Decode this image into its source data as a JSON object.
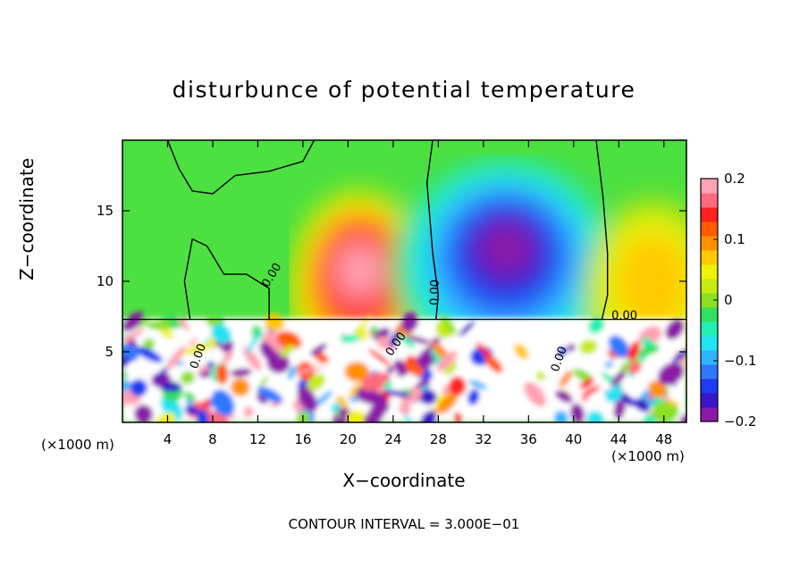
{
  "chart_data": {
    "type": "heatmap",
    "title": "disturbunce of potential temperature",
    "xlabel": "X−coordinate",
    "ylabel": "Z−coordinate",
    "x_unit": "(×1000 m)",
    "footer": "CONTOUR INTERVAL = 3.000E−01",
    "xlim": [
      0,
      50
    ],
    "ylim": [
      0,
      20
    ],
    "x_ticks": [
      4,
      8,
      12,
      16,
      20,
      24,
      28,
      32,
      36,
      40,
      44,
      48
    ],
    "y_ticks": [
      5,
      10,
      15
    ],
    "colorbar": {
      "range": [
        -0.2,
        0.2
      ],
      "tick_values": [
        0.2,
        0.1,
        0,
        -0.1,
        -0.2
      ],
      "tick_labels": [
        "0.2",
        "0.1",
        "0",
        "−0.1",
        "−0.2"
      ],
      "colors": [
        "#8c1aa8",
        "#3a16c8",
        "#1f3cf0",
        "#2f78ff",
        "#2fb4ff",
        "#22e3f2",
        "#22f0b4",
        "#30e060",
        "#8ce020",
        "#c8ea10",
        "#f0f008",
        "#ffc800",
        "#ff9000",
        "#ff5a00",
        "#ff2020",
        "#ff6a7c",
        "#ffa2b2"
      ]
    },
    "contour_labels": [
      {
        "text": "0.00",
        "x": 13.5,
        "z": 10.3,
        "angle": -58
      },
      {
        "text": "0.00",
        "x": 28.0,
        "z": 9.2,
        "angle": -88
      },
      {
        "text": "0.00",
        "x": 44.5,
        "z": 7.3,
        "angle": 0
      },
      {
        "text": "0.00",
        "x": 7.0,
        "z": 4.6,
        "angle": -70
      },
      {
        "text": "0.00",
        "x": 24.5,
        "z": 5.4,
        "angle": -55
      },
      {
        "text": "0.00",
        "x": 39.0,
        "z": 4.4,
        "angle": -70
      }
    ],
    "features": [
      {
        "kind": "warm",
        "x": 21.0,
        "z": 9.5,
        "peak": 0.2
      },
      {
        "kind": "cold",
        "x": 34.0,
        "z": 11.0,
        "peak": -0.2
      },
      {
        "kind": "warm-weak",
        "x": 47.0,
        "z": 9.0,
        "peak": 0.08
      }
    ]
  }
}
